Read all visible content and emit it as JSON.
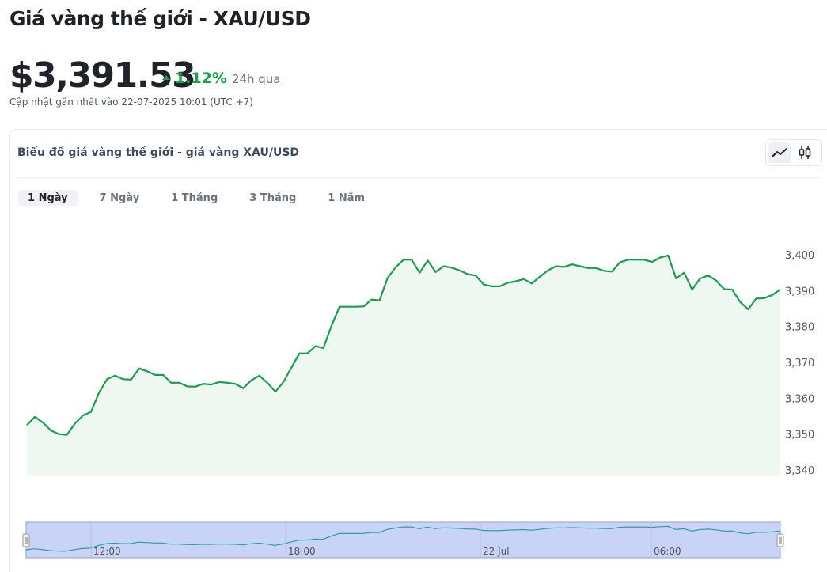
{
  "header": {
    "title": "Giá vàng thế giới - XAU/USD",
    "price": "$3,391.53",
    "change_pct": "1.12%",
    "change_period": "24h qua",
    "updated": "Cập nhật gần nhất vào 22-07-2025 10:01 (UTC +7)"
  },
  "card": {
    "title": "Biểu đồ giá vàng thế giới - giá vàng XAU/USD",
    "view_toggle": [
      "line-chart-icon",
      "candlestick-icon"
    ],
    "range_tabs": [
      {
        "label": "1 Ngày",
        "active": true
      },
      {
        "label": "7 Ngày",
        "active": false
      },
      {
        "label": "1 Tháng",
        "active": false
      },
      {
        "label": "3 Tháng",
        "active": false
      },
      {
        "label": "1 Năm",
        "active": false
      }
    ]
  },
  "colors": {
    "up": "#16a34a",
    "line": "#1a9e4b",
    "area": "#eef8f1",
    "navigator_fill": "#c9d3f5",
    "navigator_line": "#2aa198"
  },
  "chart_data": {
    "type": "area",
    "series": [
      {
        "values": [
          3352.5,
          3354.8,
          3353.2,
          3351,
          3350,
          3349.8,
          3353,
          3355.2,
          3356.2,
          3361.5,
          3365.3,
          3366.3,
          3365.3,
          3365.2,
          3368.3,
          3367.5,
          3366.5,
          3366.5,
          3364.3,
          3364.3,
          3363.3,
          3363.2,
          3364,
          3363.8,
          3364.5,
          3364.3,
          3364,
          3362.8,
          3365,
          3366.3,
          3364.3,
          3361.8,
          3364.5,
          3368.5,
          3372.5,
          3372.5,
          3374.5,
          3374,
          3380.2,
          3385.5,
          3385.5,
          3385.5,
          3385.6,
          3387.5,
          3387.3,
          3393.5,
          3396.5,
          3398.6,
          3398.6,
          3395,
          3398.4,
          3395.2,
          3396.8,
          3396.4,
          3395.6,
          3394.6,
          3394.2,
          3391.7,
          3391.2,
          3391.2,
          3392.2,
          3392.6,
          3393.2,
          3392,
          3393.9,
          3395.6,
          3396.8,
          3396.6,
          3397.3,
          3396.8,
          3396.3,
          3396.3,
          3395.5,
          3395.3,
          3397.9,
          3398.6,
          3398.6,
          3398.6,
          3398,
          3399.2,
          3399.8,
          3393.4,
          3395,
          3390.3,
          3393.4,
          3394.2,
          3392.8,
          3390.4,
          3390.3,
          3386.8,
          3384.8,
          3387.8,
          3387.9,
          3388.8,
          3390.3
        ]
      }
    ],
    "ylim": [
      3340,
      3402
    ],
    "y_ticks": [
      "3,400",
      "3,390",
      "3,380",
      "3,370",
      "3,360",
      "3,350",
      "3,340"
    ],
    "y_tick_values": [
      3400,
      3390,
      3380,
      3370,
      3360,
      3350,
      3340
    ],
    "navigator": {
      "labels": [
        "12:00",
        "18:00",
        "22 Jul",
        "06:00"
      ]
    },
    "grid": false,
    "legend": "none"
  }
}
